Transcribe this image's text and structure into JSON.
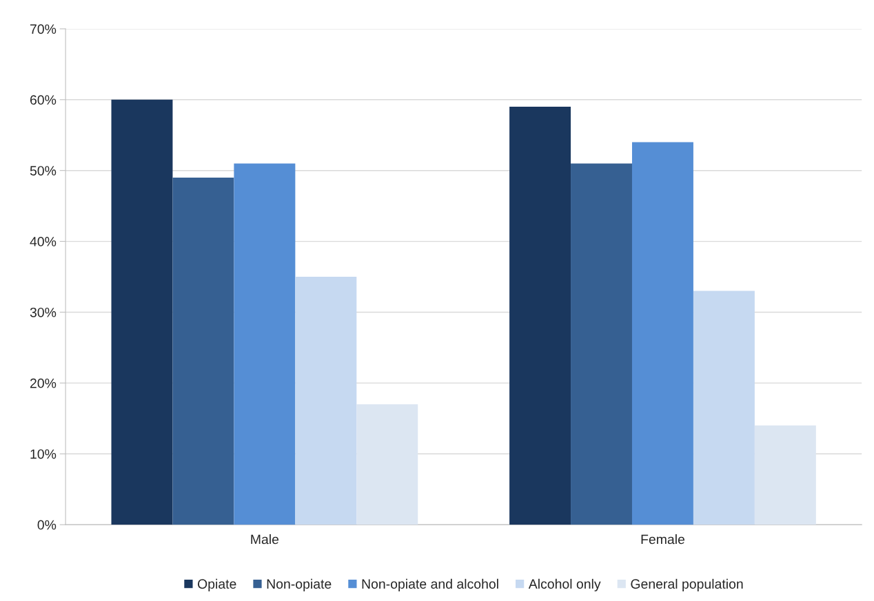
{
  "chart_data": {
    "type": "bar",
    "categories": [
      "Male",
      "Female"
    ],
    "series": [
      {
        "name": "Opiate",
        "color": "#1a375e",
        "values": [
          60,
          59
        ]
      },
      {
        "name": "Non-opiate",
        "color": "#366092",
        "values": [
          49,
          51
        ]
      },
      {
        "name": "Non-opiate and alcohol",
        "color": "#558ed5",
        "values": [
          51,
          54
        ]
      },
      {
        "name": "Alcohol only",
        "color": "#c6d9f1",
        "values": [
          35,
          33
        ]
      },
      {
        "name": "General population",
        "color": "#dce6f2",
        "values": [
          17,
          14
        ]
      }
    ],
    "ylim": [
      0,
      70
    ],
    "yticks": [
      {
        "value": 0,
        "label": "0%"
      },
      {
        "value": 10,
        "label": "10%"
      },
      {
        "value": 20,
        "label": "20%"
      },
      {
        "value": 30,
        "label": "30%"
      },
      {
        "value": 40,
        "label": "40%"
      },
      {
        "value": 50,
        "label": "50%"
      },
      {
        "value": 60,
        "label": "60%"
      },
      {
        "value": 70,
        "label": "70%"
      }
    ],
    "grid": "y",
    "legend": "bottom"
  }
}
